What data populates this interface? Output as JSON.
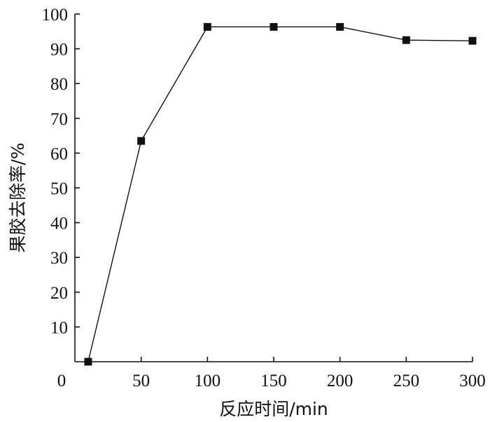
{
  "chart_data": {
    "type": "line",
    "xlabel": "反应时间/min",
    "ylabel": "果胶去除率/%",
    "xlim": [
      0,
      300
    ],
    "ylim": [
      0,
      100
    ],
    "x_ticks": [
      0,
      50,
      100,
      150,
      200,
      250,
      300
    ],
    "y_ticks": [
      10,
      20,
      30,
      40,
      50,
      60,
      70,
      80,
      90,
      100
    ],
    "grid": false,
    "marker": "square",
    "series": [
      {
        "x": [
          10,
          50,
          100,
          150,
          200,
          250,
          300
        ],
        "y": [
          0,
          63.5,
          96.3,
          96.3,
          96.3,
          92.5,
          92.3
        ]
      }
    ]
  }
}
